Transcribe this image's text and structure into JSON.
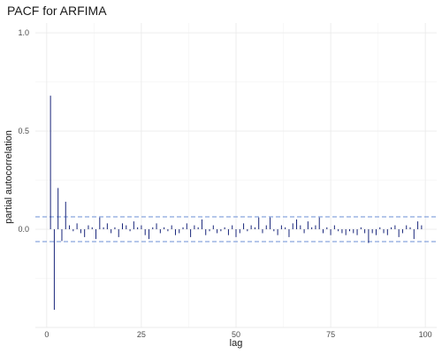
{
  "chart_data": {
    "type": "bar",
    "title": "PACF for ARFIMA",
    "xlabel": "lag",
    "ylabel": "partial autocorrelation",
    "xlim": [
      -3,
      103
    ],
    "ylim": [
      -0.5,
      1.05
    ],
    "xticks": [
      0,
      25,
      50,
      75,
      100
    ],
    "yticks": [
      -0.5,
      0.0,
      0.5,
      1.0
    ],
    "ytick_labels": [
      "",
      "0.0",
      "0.5",
      "1.0"
    ],
    "grid": true,
    "confidence_bound": 0.063,
    "series": [
      {
        "x": [
          1,
          2,
          3,
          4,
          5,
          6,
          7,
          8,
          9,
          10,
          11,
          12,
          13,
          14,
          15,
          16,
          17,
          18,
          19,
          20,
          21,
          22,
          23,
          24,
          25,
          26,
          27,
          28,
          29,
          30,
          31,
          32,
          33,
          34,
          35,
          36,
          37,
          38,
          39,
          40,
          41,
          42,
          43,
          44,
          45,
          46,
          47,
          48,
          49,
          50,
          51,
          52,
          53,
          54,
          55,
          56,
          57,
          58,
          59,
          60,
          61,
          62,
          63,
          64,
          65,
          66,
          67,
          68,
          69,
          70,
          71,
          72,
          73,
          74,
          75,
          76,
          77,
          78,
          79,
          80,
          81,
          82,
          83,
          84,
          85,
          86,
          87,
          88,
          89,
          90,
          91,
          92,
          93,
          94,
          95,
          96,
          97,
          98,
          99
        ],
        "values": [
          0.68,
          -0.41,
          0.21,
          -0.06,
          0.14,
          0.02,
          -0.01,
          0.03,
          -0.02,
          -0.04,
          0.02,
          0.01,
          -0.05,
          0.06,
          0.01,
          0.03,
          -0.02,
          0.01,
          -0.04,
          0.03,
          0.02,
          -0.01,
          0.04,
          0.01,
          0.02,
          -0.03,
          -0.05,
          0.01,
          0.03,
          -0.02,
          0.01,
          -0.01,
          0.02,
          -0.03,
          -0.02,
          0.01,
          0.03,
          -0.04,
          0.02,
          0.01,
          0.05,
          -0.03,
          -0.01,
          0.02,
          -0.02,
          -0.01,
          0.01,
          -0.03,
          0.02,
          -0.04,
          -0.02,
          0.03,
          -0.01,
          0.02,
          0.01,
          0.06,
          -0.02,
          0.02,
          0.06,
          -0.01,
          -0.03,
          0.02,
          0.01,
          -0.04,
          0.03,
          0.05,
          0.02,
          -0.02,
          0.04,
          0.01,
          0.02,
          0.06,
          -0.02,
          0.01,
          -0.03,
          0.02,
          -0.01,
          -0.02,
          -0.03,
          -0.01,
          -0.02,
          -0.03,
          0.01,
          -0.02,
          -0.07,
          -0.02,
          -0.03,
          0.01,
          -0.02,
          -0.03,
          0.01,
          0.02,
          -0.04,
          -0.02,
          0.02,
          0.01,
          -0.05,
          0.04,
          0.02
        ]
      }
    ]
  }
}
